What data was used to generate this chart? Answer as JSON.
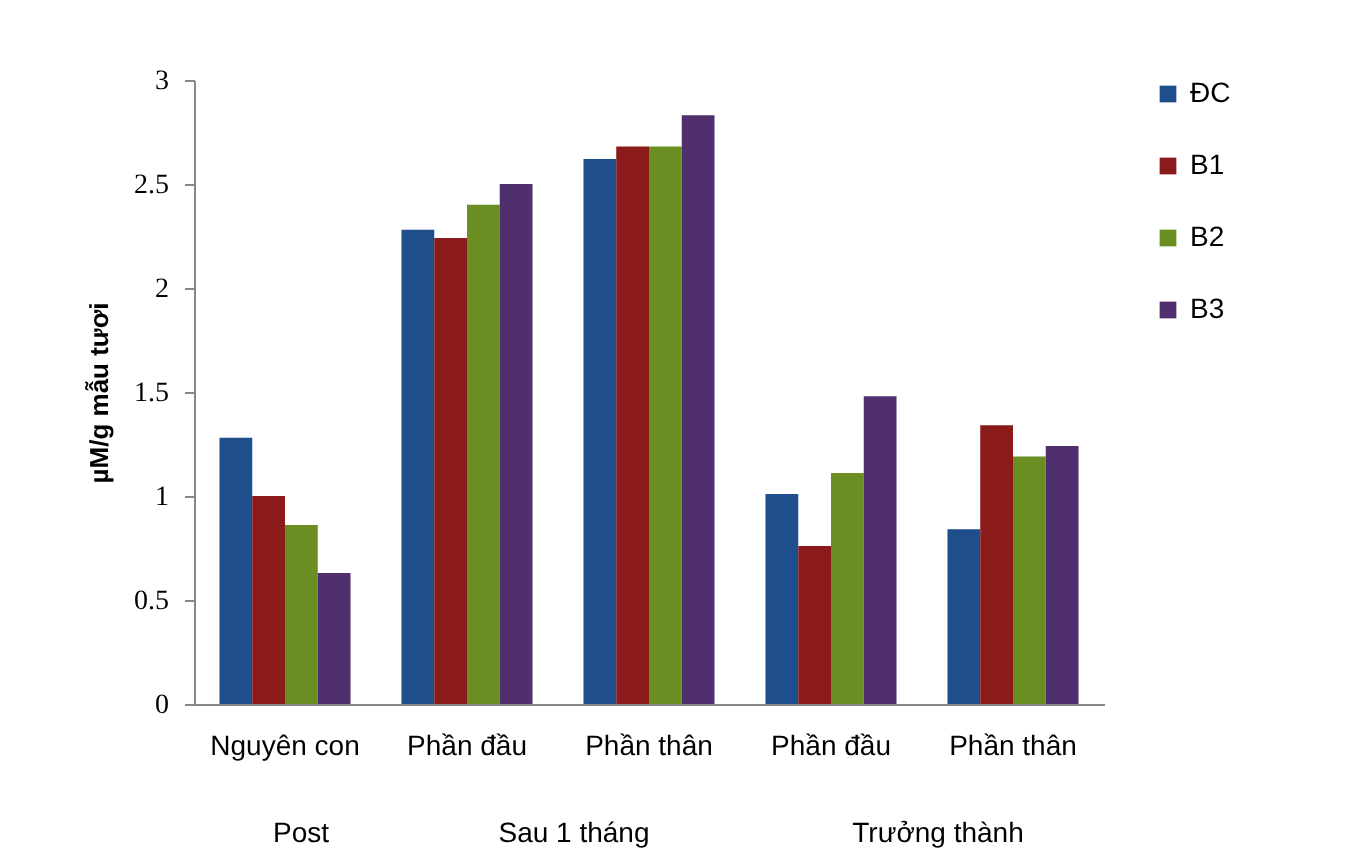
{
  "chart_data": {
    "type": "bar",
    "ylabel": "µM/g mẫu tươi",
    "categories": [
      "Nguyên con",
      "Phần đầu",
      "Phần thân",
      "Phần đầu",
      "Phần thân"
    ],
    "series": [
      {
        "name": "ĐC",
        "color": "#1f4e8c",
        "values": [
          1.28,
          2.28,
          2.62,
          1.01,
          0.84
        ]
      },
      {
        "name": "B1",
        "color": "#8b1a1a",
        "values": [
          1.0,
          2.24,
          2.68,
          0.76,
          1.34
        ]
      },
      {
        "name": "B2",
        "color": "#6b8e23",
        "values": [
          0.86,
          2.4,
          2.68,
          1.11,
          1.19
        ]
      },
      {
        "name": "B3",
        "color": "#4f2f6e",
        "values": [
          0.63,
          2.5,
          2.83,
          1.48,
          1.24
        ]
      }
    ],
    "annotations": [
      "Post",
      "Sau 1 tháng",
      "Trưởng thành"
    ],
    "ylim": [
      0,
      3
    ],
    "yticks": [
      0,
      0.5,
      1,
      1.5,
      2,
      2.5,
      3
    ],
    "grid": false,
    "legend": "top right"
  }
}
